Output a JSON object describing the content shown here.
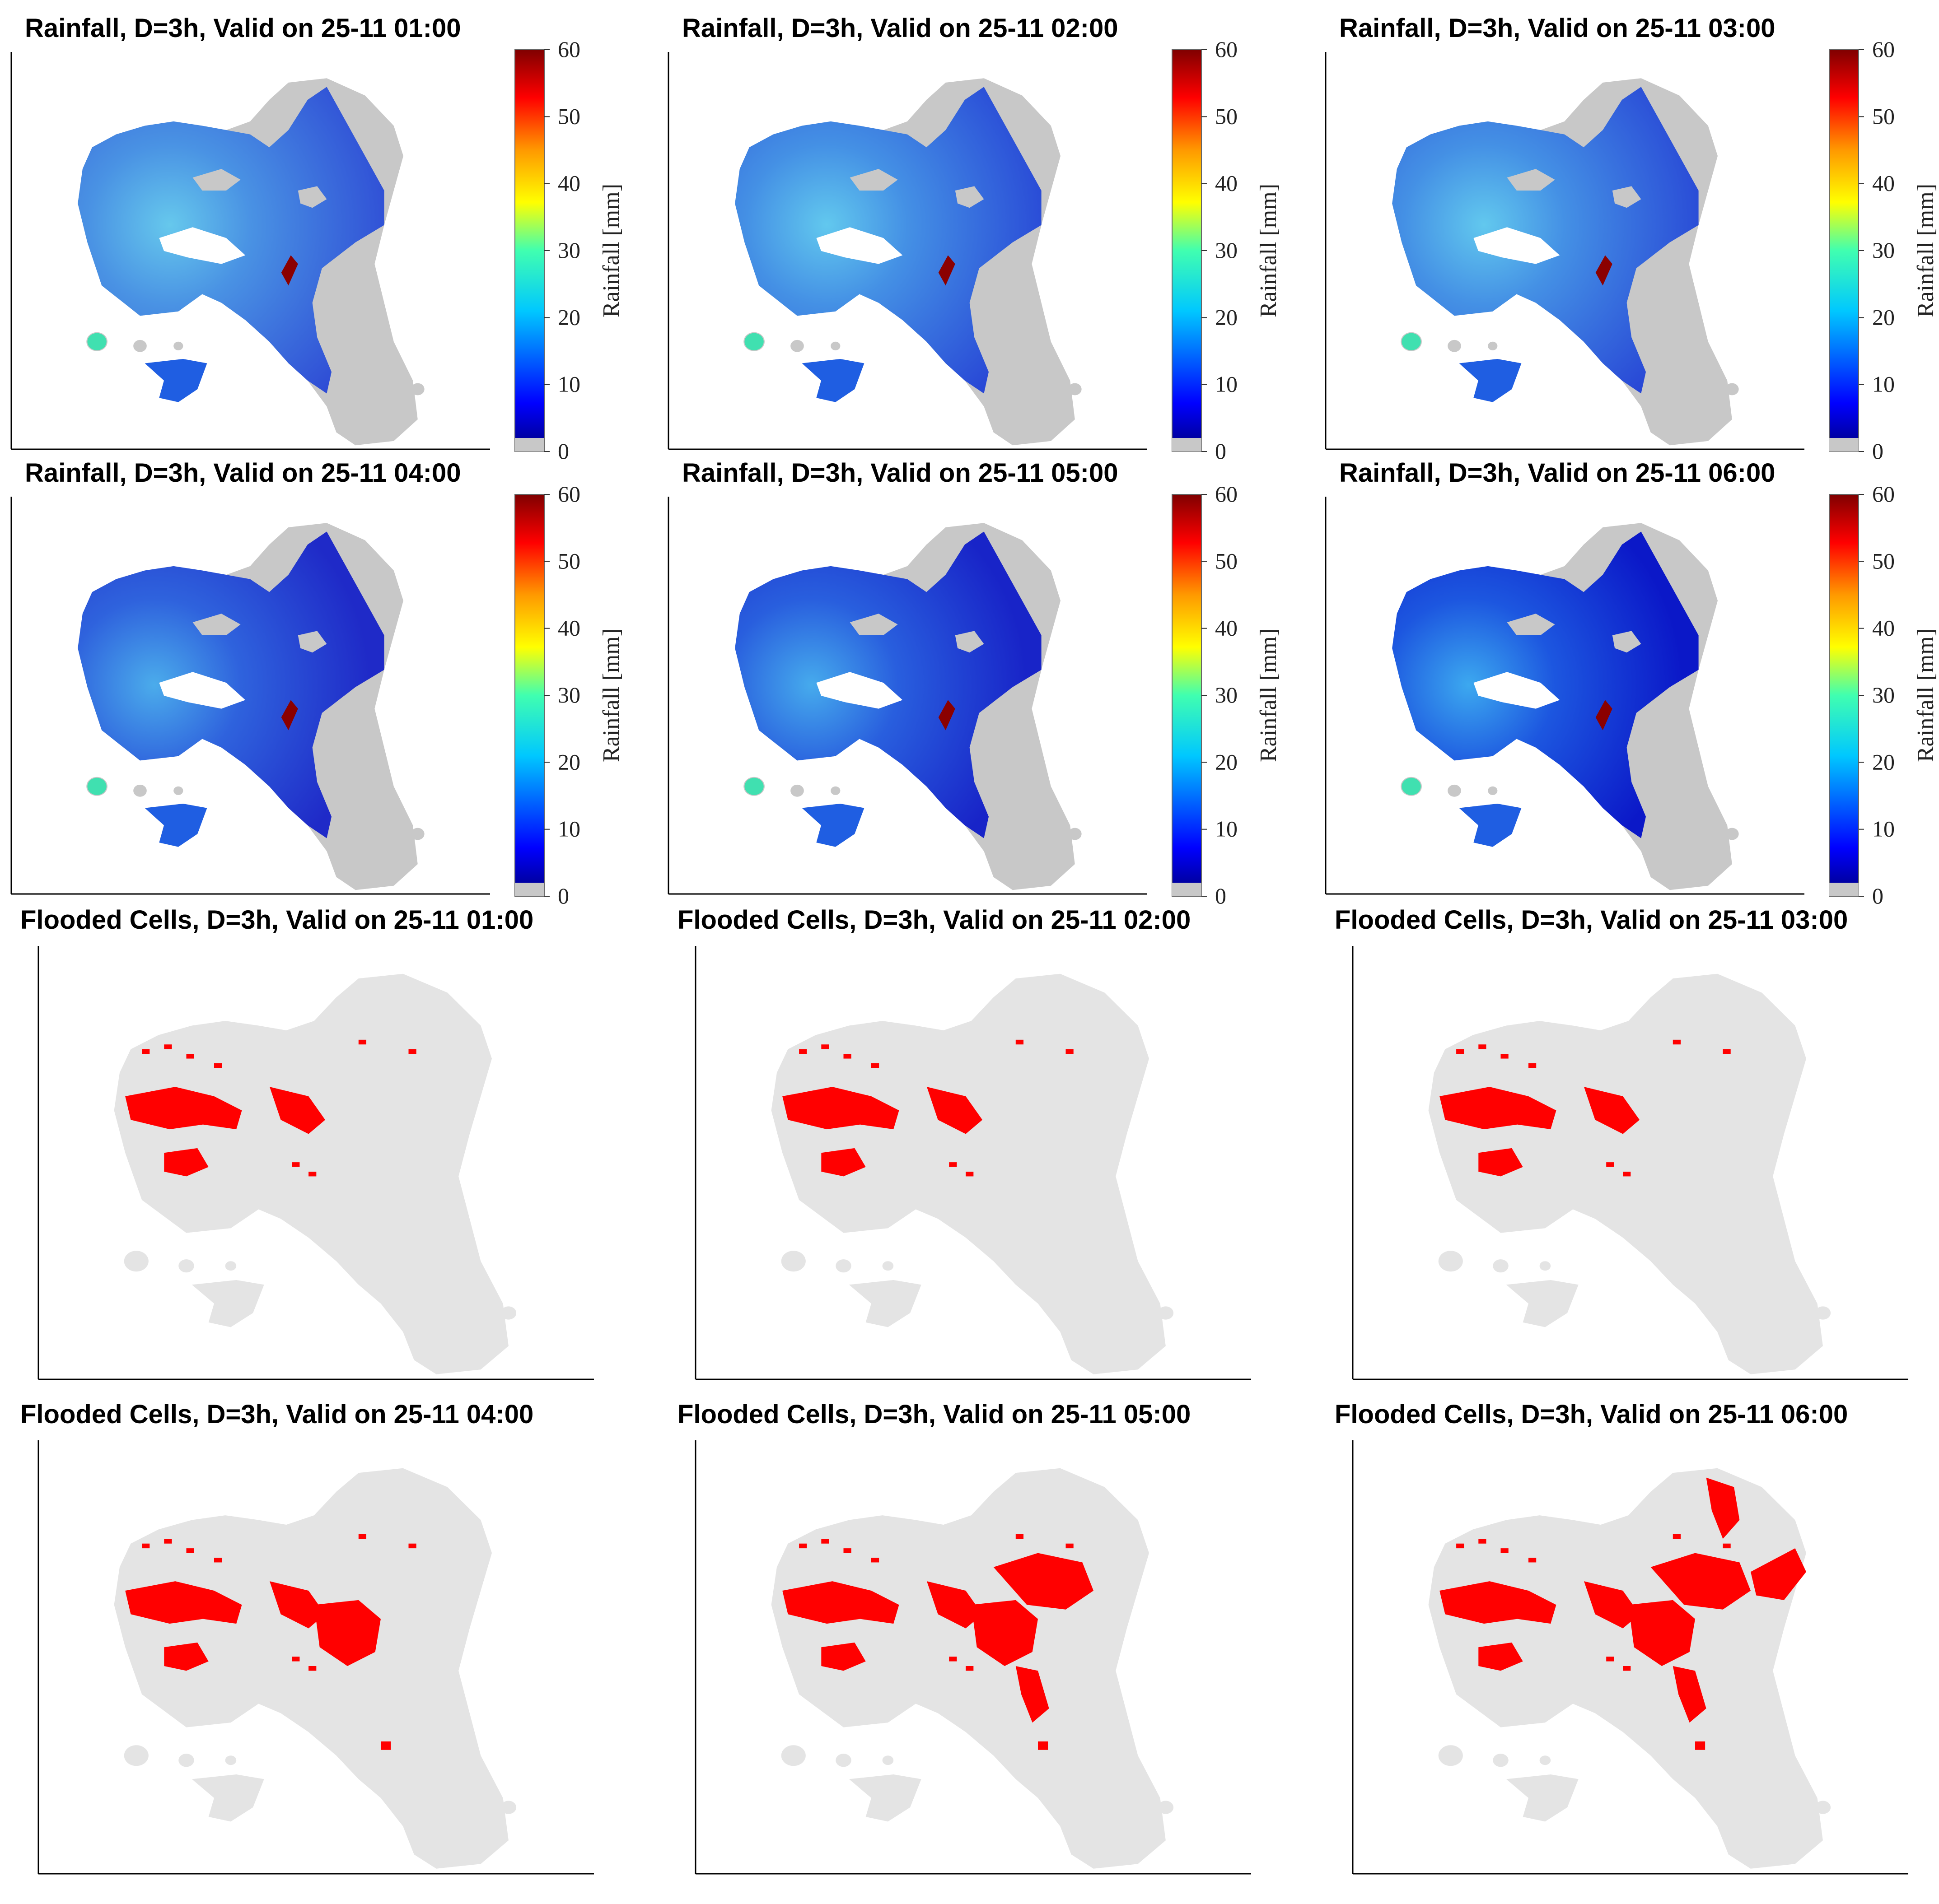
{
  "figure": {
    "rows": [
      {
        "kind": "rainfall",
        "panels": [
          {
            "title": "Rainfall, D=3h, Valid on 25-11 01:00",
            "intensity": 0.3
          },
          {
            "title": "Rainfall, D=3h, Valid on 25-11 02:00",
            "intensity": 0.35
          },
          {
            "title": "Rainfall, D=3h, Valid on 25-11 03:00",
            "intensity": 0.35
          }
        ]
      },
      {
        "kind": "rainfall",
        "panels": [
          {
            "title": "Rainfall, D=3h, Valid on 25-11 04:00",
            "intensity": 0.4
          },
          {
            "title": "Rainfall, D=3h, Valid on 25-11 05:00",
            "intensity": 0.45
          },
          {
            "title": "Rainfall, D=3h, Valid on 25-11 06:00",
            "intensity": 0.55
          }
        ]
      },
      {
        "kind": "flood",
        "panels": [
          {
            "title": "Flooded Cells, D=3h, Valid on 25-11 01:00",
            "flood_level": 1
          },
          {
            "title": "Flooded Cells, D=3h, Valid on 25-11 02:00",
            "flood_level": 1
          },
          {
            "title": "Flooded Cells, D=3h, Valid on 25-11 03:00",
            "flood_level": 1
          }
        ]
      },
      {
        "kind": "flood",
        "panels": [
          {
            "title": "Flooded Cells, D=3h, Valid on 25-11 04:00",
            "flood_level": 2
          },
          {
            "title": "Flooded Cells, D=3h, Valid on 25-11 05:00",
            "flood_level": 3
          },
          {
            "title": "Flooded Cells, D=3h, Valid on 25-11 06:00",
            "flood_level": 4
          }
        ]
      }
    ],
    "colorbar": {
      "label": "Rainfall [mm]",
      "ticks": [
        "0",
        "10",
        "20",
        "30",
        "40",
        "50",
        "60"
      ],
      "min": 0,
      "max": 60
    },
    "colors": {
      "land": "#c8c8c8",
      "flood_land": "#e4e4e4",
      "flood": "#ff0000",
      "rain_low": "#2e7be8",
      "rain_high": "#0a1fd6",
      "rain_light": "#45c8f2",
      "hotspot": "#8b0000"
    }
  }
}
